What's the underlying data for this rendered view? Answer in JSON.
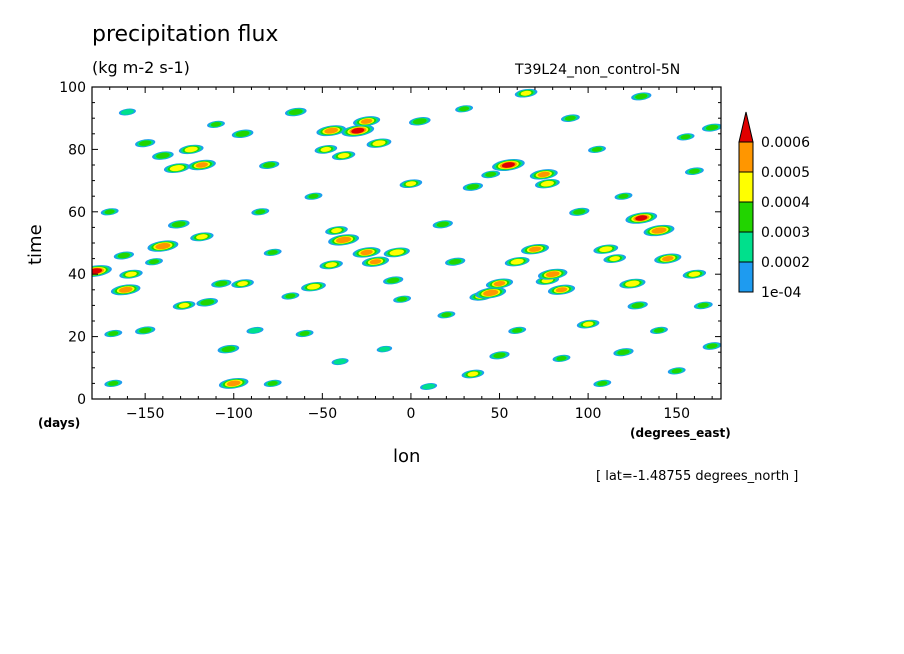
{
  "chart_data": {
    "type": "heatmap",
    "title": "precipitation flux",
    "subtitle": "(kg m-2 s-1)",
    "run_label": "T39L24_non_control-5N",
    "xlabel": "lon",
    "ylabel": "time",
    "x_units": "(degrees_east)",
    "y_units": "(days)",
    "xlim": [
      -180,
      175
    ],
    "ylim": [
      0,
      100
    ],
    "x_ticks": [
      -150,
      -100,
      -50,
      0,
      50,
      100,
      150
    ],
    "x_tick_labels": [
      "−150",
      "−100",
      "−50",
      "0",
      "50",
      "100",
      "150"
    ],
    "y_ticks": [
      0,
      20,
      40,
      60,
      80,
      100
    ],
    "y_tick_labels": [
      "0",
      "20",
      "40",
      "60",
      "80",
      "100"
    ],
    "annotation": "[ lat=-1.48755 degrees_north ]",
    "levels": [
      0.0001,
      0.0002,
      0.0003,
      0.0004,
      0.0005,
      0.0006
    ],
    "colorbar_labels": [
      "1e-04",
      "0.0002",
      "0.0003",
      "0.0004",
      "0.0005",
      "0.0006"
    ],
    "colors": [
      "#1e9bf0",
      "#00e08c",
      "#22d400",
      "#ffff00",
      "#ff9600",
      "#e00000"
    ],
    "blobs": [
      [
        -178,
        41,
        0.00062
      ],
      [
        -161,
        35,
        0.00055
      ],
      [
        -158,
        40,
        0.00042
      ],
      [
        -162,
        46,
        0.00035
      ],
      [
        -140,
        49,
        0.00058
      ],
      [
        -145,
        44,
        0.0003
      ],
      [
        -132,
        74,
        0.00048
      ],
      [
        -124,
        80,
        0.00045
      ],
      [
        -118,
        75,
        0.00052
      ],
      [
        -131,
        56,
        0.00038
      ],
      [
        -118,
        52,
        0.00042
      ],
      [
        -100,
        5,
        0.00055
      ],
      [
        -107,
        37,
        0.00035
      ],
      [
        -95,
        37,
        0.0004
      ],
      [
        -95,
        85,
        0.00038
      ],
      [
        -103,
        16,
        0.00038
      ],
      [
        -55,
        36,
        0.00045
      ],
      [
        -42,
        54,
        0.0004
      ],
      [
        -38,
        51,
        0.00058
      ],
      [
        -45,
        43,
        0.00042
      ],
      [
        -25,
        47,
        0.00052
      ],
      [
        -20,
        44,
        0.0005
      ],
      [
        -8,
        47,
        0.00048
      ],
      [
        -45,
        86,
        0.00055
      ],
      [
        -30,
        86,
        0.00062
      ],
      [
        -25,
        89,
        0.0005
      ],
      [
        -18,
        82,
        0.00045
      ],
      [
        -48,
        80,
        0.0004
      ],
      [
        -38,
        78,
        0.00042
      ],
      [
        -80,
        75,
        0.00035
      ],
      [
        -65,
        92,
        0.00038
      ],
      [
        -78,
        5,
        0.0003
      ],
      [
        -68,
        33,
        0.0003
      ],
      [
        -15,
        16,
        0.00025
      ],
      [
        0,
        69,
        0.0004
      ],
      [
        5,
        89,
        0.00038
      ],
      [
        30,
        93,
        0.0003
      ],
      [
        40,
        33,
        0.00045
      ],
      [
        45,
        34,
        0.00058
      ],
      [
        50,
        37,
        0.0005
      ],
      [
        60,
        44,
        0.00045
      ],
      [
        55,
        75,
        0.00062
      ],
      [
        70,
        48,
        0.00052
      ],
      [
        77,
        38,
        0.00042
      ],
      [
        80,
        40,
        0.00055
      ],
      [
        85,
        35,
        0.0005
      ],
      [
        75,
        72,
        0.00052
      ],
      [
        77,
        69,
        0.00045
      ],
      [
        35,
        8,
        0.0004
      ],
      [
        50,
        14,
        0.00035
      ],
      [
        85,
        13,
        0.0003
      ],
      [
        110,
        48,
        0.00045
      ],
      [
        115,
        45,
        0.0004
      ],
      [
        125,
        37,
        0.00048
      ],
      [
        130,
        58,
        0.0006
      ],
      [
        140,
        54,
        0.00058
      ],
      [
        145,
        45,
        0.0005
      ],
      [
        160,
        40,
        0.00042
      ],
      [
        130,
        97,
        0.00035
      ],
      [
        155,
        84,
        0.0003
      ],
      [
        170,
        87,
        0.00035
      ],
      [
        160,
        73,
        0.00032
      ],
      [
        128,
        30,
        0.00035
      ],
      [
        120,
        15,
        0.00035
      ],
      [
        100,
        24,
        0.0004
      ],
      [
        108,
        5,
        0.0003
      ],
      [
        150,
        9,
        0.0003
      ],
      [
        170,
        17,
        0.00032
      ],
      [
        65,
        98,
        0.0004
      ],
      [
        18,
        56,
        0.00035
      ],
      [
        -85,
        60,
        0.0003
      ],
      [
        -78,
        47,
        0.0003
      ],
      [
        -150,
        22,
        0.00035
      ],
      [
        -115,
        31,
        0.00038
      ],
      [
        -128,
        30,
        0.0004
      ],
      [
        -168,
        21,
        0.0003
      ],
      [
        -168,
        5,
        0.0003
      ],
      [
        -150,
        82,
        0.00035
      ],
      [
        -140,
        78,
        0.00038
      ],
      [
        -60,
        21,
        0.0003
      ],
      [
        -55,
        65,
        0.0003
      ],
      [
        -10,
        38,
        0.00035
      ],
      [
        20,
        27,
        0.0003
      ],
      [
        35,
        68,
        0.00035
      ],
      [
        95,
        60,
        0.00035
      ],
      [
        105,
        80,
        0.0003
      ],
      [
        -170,
        60,
        0.0003
      ],
      [
        -110,
        88,
        0.0003
      ],
      [
        45,
        72,
        0.00032
      ],
      [
        -5,
        32,
        0.0003
      ],
      [
        25,
        44,
        0.00035
      ],
      [
        90,
        90,
        0.00032
      ],
      [
        120,
        65,
        0.0003
      ],
      [
        -160,
        92,
        0.00028
      ],
      [
        10,
        4,
        0.00028
      ],
      [
        -40,
        12,
        0.00028
      ],
      [
        165,
        30,
        0.00032
      ],
      [
        -88,
        22,
        0.00028
      ],
      [
        60,
        22,
        0.0003
      ],
      [
        140,
        22,
        0.0003
      ]
    ]
  }
}
